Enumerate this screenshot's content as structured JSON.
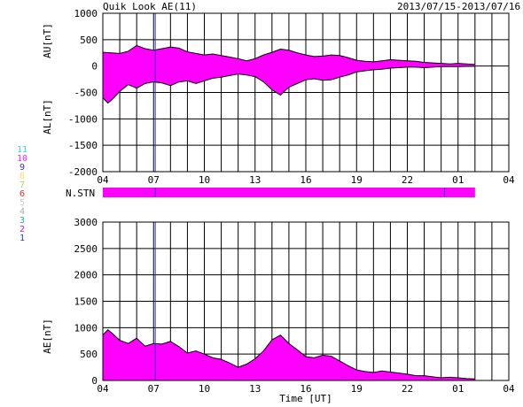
{
  "header": {
    "title": "Quik Look AE(11)",
    "date_range": "2013/07/15-2013/07/16"
  },
  "stations_legend": [
    {
      "label": "11",
      "color": "#33dddd"
    },
    {
      "label": "10",
      "color": "#ff22ff"
    },
    {
      "label": "9",
      "color": "#3333cc"
    },
    {
      "label": "8",
      "color": "#ffdd66"
    },
    {
      "label": "7",
      "color": "#99dd66"
    },
    {
      "label": "6",
      "color": "#ff2222"
    },
    {
      "label": "5",
      "color": "#cccccc"
    },
    {
      "label": "4",
      "color": "#aaaaaa"
    },
    {
      "label": "3",
      "color": "#22aaaa"
    },
    {
      "label": "2",
      "color": "#cc22cc"
    },
    {
      "label": "1",
      "color": "#3333cc"
    }
  ],
  "colors": {
    "fill": "#ff00ff",
    "marker": "#3333cc",
    "outline": "#000000"
  },
  "chart_data": [
    {
      "type": "area",
      "id": "au-al",
      "xlabel": "",
      "ylabels": [
        "AU[nT]",
        "AL[nT]"
      ],
      "x_ticks": [
        "04",
        "07",
        "10",
        "13",
        "16",
        "19",
        "22",
        "01",
        "04"
      ],
      "x_range": [
        4,
        28
      ],
      "ylim": [
        -2000,
        1000
      ],
      "y_ticks": [
        1000,
        500,
        0,
        -500,
        -1000,
        -1500,
        -2000
      ],
      "grid": true,
      "au": {
        "x": [
          4,
          4.5,
          5,
          5.5,
          6,
          6.5,
          7,
          7.5,
          8,
          8.5,
          9,
          9.5,
          10,
          10.5,
          11,
          11.5,
          12,
          12.5,
          13,
          13.5,
          14,
          14.5,
          15,
          15.5,
          16,
          16.5,
          17,
          17.5,
          18,
          18.5,
          19,
          19.5,
          20,
          20.5,
          21,
          21.5,
          22,
          22.5,
          23,
          23.5,
          24,
          24.5,
          25,
          25.5,
          26
        ],
        "y": [
          260,
          250,
          240,
          280,
          390,
          330,
          300,
          330,
          360,
          340,
          270,
          240,
          210,
          230,
          200,
          170,
          140,
          100,
          140,
          210,
          260,
          320,
          300,
          250,
          210,
          180,
          190,
          210,
          200,
          160,
          110,
          90,
          80,
          100,
          120,
          110,
          100,
          90,
          70,
          60,
          50,
          40,
          50,
          40,
          30
        ]
      },
      "al": {
        "x": [
          4,
          4.3,
          4.6,
          5,
          5.5,
          6,
          6.5,
          7,
          7.5,
          8,
          8.5,
          9,
          9.5,
          10,
          10.5,
          11,
          11.5,
          12,
          12.5,
          13,
          13.5,
          14,
          14.5,
          15,
          15.5,
          16,
          16.5,
          17,
          17.5,
          18,
          18.5,
          19,
          19.5,
          20,
          20.5,
          21,
          21.5,
          22,
          22.5,
          23,
          23.5,
          24,
          24.5,
          25,
          25.5,
          26
        ],
        "y": [
          -600,
          -700,
          -620,
          -480,
          -350,
          -420,
          -330,
          -300,
          -320,
          -370,
          -300,
          -280,
          -330,
          -280,
          -230,
          -210,
          -180,
          -150,
          -170,
          -200,
          -300,
          -450,
          -550,
          -400,
          -330,
          -260,
          -240,
          -270,
          -260,
          -210,
          -170,
          -110,
          -90,
          -70,
          -60,
          -40,
          -30,
          -20,
          -20,
          -30,
          -20,
          -10,
          -10,
          -10,
          -5,
          -5
        ]
      },
      "marker_x": 7.1
    },
    {
      "type": "bar",
      "id": "n-stn",
      "label": "N.STN",
      "x_range": [
        4,
        26
      ],
      "markers_x": [
        7.1,
        24.2
      ]
    },
    {
      "type": "area",
      "id": "ae",
      "xlabel": "Time [UT]",
      "ylabel": "AE[nT]",
      "x_ticks": [
        "04",
        "07",
        "10",
        "13",
        "16",
        "19",
        "22",
        "01",
        "04"
      ],
      "x_range": [
        4,
        28
      ],
      "ylim": [
        0,
        3000
      ],
      "y_ticks": [
        3000,
        2500,
        2000,
        1500,
        1000,
        500,
        0
      ],
      "grid": true,
      "x": [
        4,
        4.3,
        4.6,
        5,
        5.5,
        6,
        6.5,
        7,
        7.5,
        8,
        8.5,
        9,
        9.5,
        10,
        10.5,
        11,
        11.5,
        12,
        12.5,
        13,
        13.5,
        14,
        14.5,
        15,
        15.5,
        16,
        16.5,
        17,
        17.5,
        18,
        18.5,
        19,
        19.5,
        20,
        20.5,
        21,
        21.5,
        22,
        22.5,
        23,
        23.5,
        24,
        24.5,
        25,
        25.5,
        26
      ],
      "y": [
        860,
        960,
        880,
        760,
        700,
        800,
        650,
        700,
        690,
        740,
        640,
        520,
        560,
        500,
        430,
        400,
        330,
        250,
        310,
        410,
        560,
        770,
        860,
        700,
        580,
        450,
        430,
        480,
        460,
        370,
        280,
        200,
        170,
        150,
        180,
        160,
        140,
        120,
        90,
        90,
        70,
        50,
        60,
        50,
        35,
        30
      ],
      "marker_x": 7.1
    }
  ]
}
